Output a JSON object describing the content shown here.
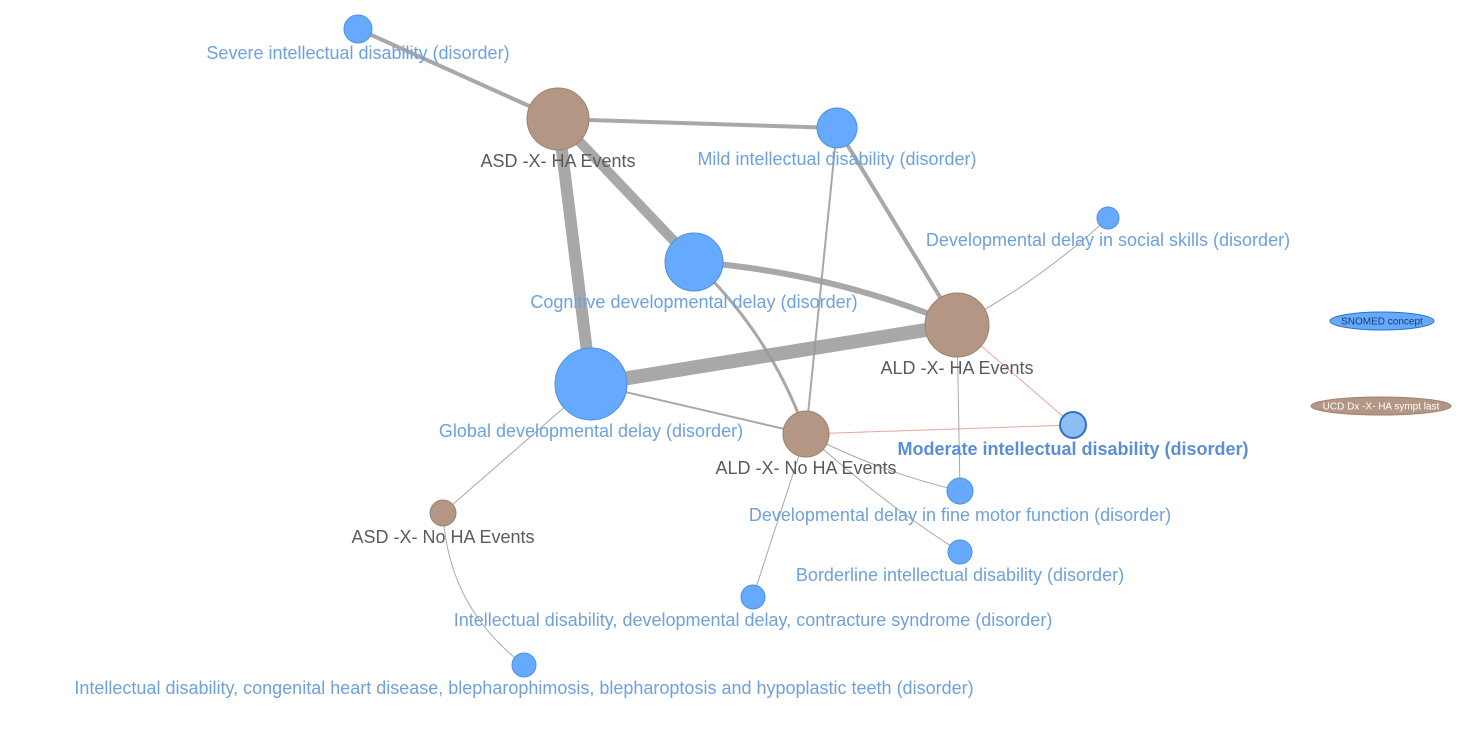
{
  "colors": {
    "concept_node": "#66aaff",
    "concept_stroke": "#4f8fe0",
    "group_node": "#b39683",
    "group_stroke": "#9d8270",
    "concept_label": "#6fa1dc",
    "group_label": "#5b5b5b",
    "edge": "#999999",
    "edge_highlight": "#e89a90",
    "highlight_node": "#8ebcf5"
  },
  "nodes": [
    {
      "id": "severe_id",
      "label": "Severe intellectual disability (disorder)",
      "type": "concept"
    },
    {
      "id": "asd_ha",
      "label": "ASD -X- HA Events",
      "type": "group"
    },
    {
      "id": "mild_id",
      "label": "Mild intellectual disability (disorder)",
      "type": "concept"
    },
    {
      "id": "dd_social",
      "label": "Developmental delay in social skills (disorder)",
      "type": "concept"
    },
    {
      "id": "cog_dd",
      "label": "Cognitive developmental delay (disorder)",
      "type": "concept"
    },
    {
      "id": "ald_ha",
      "label": "ALD -X- HA Events",
      "type": "group"
    },
    {
      "id": "global_dd",
      "label": "Global developmental delay (disorder)",
      "type": "concept"
    },
    {
      "id": "ald_noha",
      "label": "ALD -X- No HA Events",
      "type": "group"
    },
    {
      "id": "moderate_id",
      "label": "Moderate intellectual disability (disorder)",
      "type": "concept",
      "highlight": true
    },
    {
      "id": "asd_noha",
      "label": "ASD -X- No HA Events",
      "type": "group"
    },
    {
      "id": "dd_fine",
      "label": "Developmental delay in fine motor function (disorder)",
      "type": "concept"
    },
    {
      "id": "borderline_id",
      "label": "Borderline intellectual disability (disorder)",
      "type": "concept"
    },
    {
      "id": "id_contracture",
      "label": "Intellectual disability, developmental delay, contracture syndrome (disorder)",
      "type": "concept"
    },
    {
      "id": "id_heart",
      "label": "Intellectual disability, congenital heart disease, blepharophimosis, blepharoptosis and hypoplastic teeth (disorder)",
      "type": "concept"
    }
  ],
  "edges": [
    {
      "from": "severe_id",
      "to": "asd_ha",
      "weight": 4
    },
    {
      "from": "asd_ha",
      "to": "mild_id",
      "weight": 4
    },
    {
      "from": "asd_ha",
      "to": "cog_dd",
      "weight": 10
    },
    {
      "from": "asd_ha",
      "to": "global_dd",
      "weight": 12
    },
    {
      "from": "mild_id",
      "to": "ald_ha",
      "weight": 4
    },
    {
      "from": "mild_id",
      "to": "ald_noha",
      "weight": 2
    },
    {
      "from": "cog_dd",
      "to": "ald_ha",
      "weight": 6
    },
    {
      "from": "cog_dd",
      "to": "ald_noha",
      "weight": 3
    },
    {
      "from": "global_dd",
      "to": "ald_ha",
      "weight": 14
    },
    {
      "from": "global_dd",
      "to": "ald_noha",
      "weight": 2
    },
    {
      "from": "global_dd",
      "to": "asd_noha",
      "weight": 1
    },
    {
      "from": "dd_social",
      "to": "ald_ha",
      "weight": 1
    },
    {
      "from": "ald_ha",
      "to": "dd_fine",
      "weight": 1
    },
    {
      "from": "ald_ha",
      "to": "moderate_id",
      "weight": 1,
      "highlight": true
    },
    {
      "from": "ald_noha",
      "to": "moderate_id",
      "weight": 1,
      "highlight": true
    },
    {
      "from": "ald_noha",
      "to": "dd_fine",
      "weight": 1
    },
    {
      "from": "ald_noha",
      "to": "borderline_id",
      "weight": 1
    },
    {
      "from": "ald_noha",
      "to": "id_contracture",
      "weight": 1
    },
    {
      "from": "asd_noha",
      "to": "id_heart",
      "weight": 1
    }
  ],
  "legend": [
    {
      "label": "SNOMED concept",
      "type": "concept"
    },
    {
      "label": "UCD Dx -X- HA sympt last",
      "type": "group"
    }
  ]
}
